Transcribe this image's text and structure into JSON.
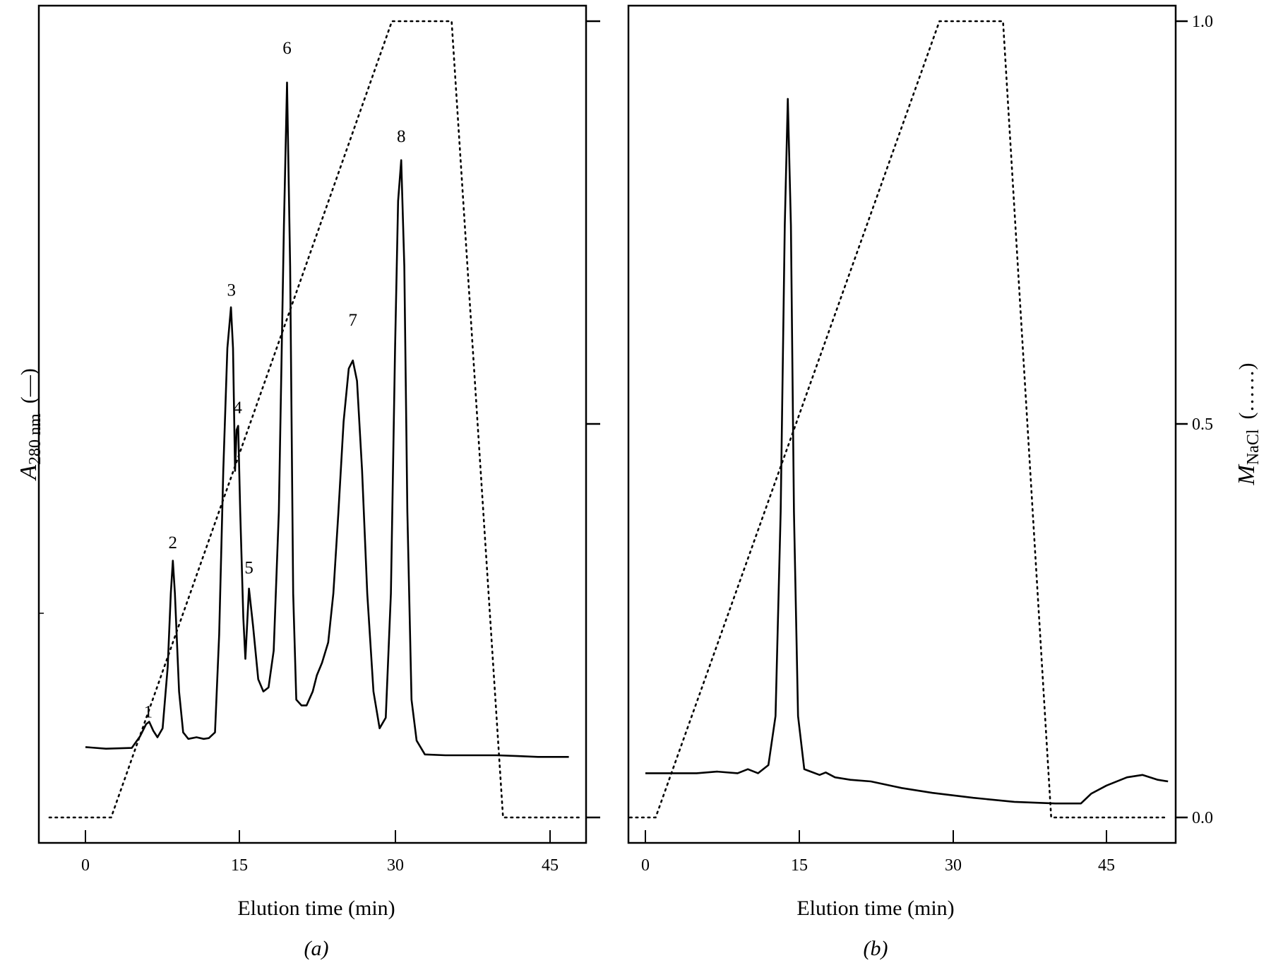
{
  "colors": {
    "ink": "#000000",
    "background": "#ffffff"
  },
  "chart_data": [
    {
      "type": "line",
      "panel_label": "(a)",
      "xlabel": "Elution time (min)",
      "xticks": [
        "0",
        "15",
        "30",
        "45"
      ],
      "xlim": [
        -3.5,
        48
      ],
      "ylabel_left": {
        "symbol": "A",
        "subscript": "280 nm",
        "legend": "(—)"
      },
      "ylim_left": [
        0,
        1
      ],
      "ylim_right": [
        -0.03,
        1.0
      ],
      "peak_labels": [
        {
          "text": "1",
          "x": 6.1,
          "y": 0.138
        },
        {
          "text": "2",
          "x": 8.5,
          "y": 0.345
        },
        {
          "text": "3",
          "x": 14.2,
          "y": 0.654
        },
        {
          "text": "4",
          "x": 14.8,
          "y": 0.51
        },
        {
          "text": "5",
          "x": 15.9,
          "y": 0.314
        },
        {
          "text": "6",
          "x": 19.6,
          "y": 0.95
        },
        {
          "text": "7",
          "x": 26.0,
          "y": 0.617
        },
        {
          "text": "8",
          "x": 30.7,
          "y": 0.842
        }
      ],
      "series": [
        {
          "style": "solid",
          "axis": "left",
          "points": [
            [
              0,
              0.112
            ],
            [
              2,
              0.11
            ],
            [
              4.5,
              0.111
            ],
            [
              5.3,
              0.125
            ],
            [
              5.9,
              0.14
            ],
            [
              6.2,
              0.143
            ],
            [
              6.6,
              0.132
            ],
            [
              7.0,
              0.124
            ],
            [
              7.5,
              0.135
            ],
            [
              8.0,
              0.21
            ],
            [
              8.3,
              0.3
            ],
            [
              8.5,
              0.34
            ],
            [
              8.7,
              0.3
            ],
            [
              9.1,
              0.18
            ],
            [
              9.5,
              0.13
            ],
            [
              10.0,
              0.122
            ],
            [
              10.8,
              0.124
            ],
            [
              11.5,
              0.122
            ],
            [
              12.0,
              0.123
            ],
            [
              12.6,
              0.13
            ],
            [
              13.0,
              0.25
            ],
            [
              13.4,
              0.45
            ],
            [
              13.8,
              0.6
            ],
            [
              14.15,
              0.65
            ],
            [
              14.35,
              0.6
            ],
            [
              14.55,
              0.45
            ],
            [
              14.7,
              0.5
            ],
            [
              14.85,
              0.505
            ],
            [
              15.05,
              0.4
            ],
            [
              15.35,
              0.27
            ],
            [
              15.55,
              0.22
            ],
            [
              15.9,
              0.306
            ],
            [
              16.3,
              0.26
            ],
            [
              16.8,
              0.195
            ],
            [
              17.3,
              0.18
            ],
            [
              17.8,
              0.185
            ],
            [
              18.3,
              0.23
            ],
            [
              18.8,
              0.4
            ],
            [
              19.3,
              0.75
            ],
            [
              19.6,
              0.925
            ],
            [
              19.9,
              0.7
            ],
            [
              20.2,
              0.3
            ],
            [
              20.5,
              0.17
            ],
            [
              21.0,
              0.163
            ],
            [
              21.5,
              0.163
            ],
            [
              22.1,
              0.18
            ],
            [
              22.5,
              0.2
            ],
            [
              23.0,
              0.215
            ],
            [
              23.6,
              0.24
            ],
            [
              24.1,
              0.3
            ],
            [
              24.6,
              0.4
            ],
            [
              25.1,
              0.51
            ],
            [
              25.6,
              0.575
            ],
            [
              26.0,
              0.585
            ],
            [
              26.4,
              0.56
            ],
            [
              26.9,
              0.45
            ],
            [
              27.4,
              0.3
            ],
            [
              28.0,
              0.18
            ],
            [
              28.6,
              0.135
            ],
            [
              29.2,
              0.148
            ],
            [
              29.7,
              0.3
            ],
            [
              30.1,
              0.6
            ],
            [
              30.4,
              0.78
            ],
            [
              30.7,
              0.83
            ],
            [
              31.0,
              0.7
            ],
            [
              31.3,
              0.4
            ],
            [
              31.7,
              0.17
            ],
            [
              32.2,
              0.12
            ],
            [
              33.0,
              0.103
            ],
            [
              35,
              0.102
            ],
            [
              38,
              0.102
            ],
            [
              40,
              0.102
            ],
            [
              42,
              0.101
            ],
            [
              44,
              0.1
            ],
            [
              47,
              0.1
            ]
          ]
        },
        {
          "style": "dotted",
          "axis": "right",
          "points": [
            [
              -3.5,
              0.0
            ],
            [
              2.5,
              0.0
            ],
            [
              29.8,
              1.0
            ],
            [
              35.6,
              1.0
            ],
            [
              40.6,
              0.0
            ],
            [
              48,
              0.0
            ]
          ]
        }
      ]
    },
    {
      "type": "line",
      "panel_label": "(b)",
      "xlabel": "Elution time (min)",
      "xticks": [
        "0",
        "15",
        "30",
        "45"
      ],
      "xlim": [
        -1.5,
        51
      ],
      "ylabel_right": {
        "symbol": "M",
        "subscript": "NaCl",
        "legend": "(……)"
      },
      "yticks_right": [
        "0.0",
        "0.5",
        "1.0"
      ],
      "ylim_left": [
        0,
        1
      ],
      "ylim_right": [
        -0.03,
        1.0
      ],
      "series": [
        {
          "style": "solid",
          "axis": "left",
          "points": [
            [
              0,
              0.08
            ],
            [
              5,
              0.08
            ],
            [
              7,
              0.082
            ],
            [
              9,
              0.08
            ],
            [
              10,
              0.085
            ],
            [
              11,
              0.08
            ],
            [
              12,
              0.09
            ],
            [
              12.7,
              0.15
            ],
            [
              13.2,
              0.4
            ],
            [
              13.6,
              0.75
            ],
            [
              13.9,
              0.905
            ],
            [
              14.2,
              0.75
            ],
            [
              14.5,
              0.4
            ],
            [
              14.9,
              0.15
            ],
            [
              15.5,
              0.085
            ],
            [
              17,
              0.078
            ],
            [
              17.6,
              0.081
            ],
            [
              18.5,
              0.075
            ],
            [
              20,
              0.072
            ],
            [
              22,
              0.07
            ],
            [
              25,
              0.062
            ],
            [
              28,
              0.056
            ],
            [
              32,
              0.05
            ],
            [
              36,
              0.045
            ],
            [
              40,
              0.043
            ],
            [
              42.5,
              0.043
            ],
            [
              43.5,
              0.055
            ],
            [
              45,
              0.065
            ],
            [
              47,
              0.075
            ],
            [
              48.5,
              0.078
            ],
            [
              50,
              0.072
            ],
            [
              51,
              0.07
            ]
          ]
        },
        {
          "style": "dotted",
          "axis": "right",
          "points": [
            [
              -1.5,
              0.0
            ],
            [
              1.0,
              0.0
            ],
            [
              28.7,
              1.0
            ],
            [
              34.9,
              1.0
            ],
            [
              39.6,
              0.0
            ],
            [
              51,
              0.0
            ]
          ]
        }
      ]
    }
  ]
}
